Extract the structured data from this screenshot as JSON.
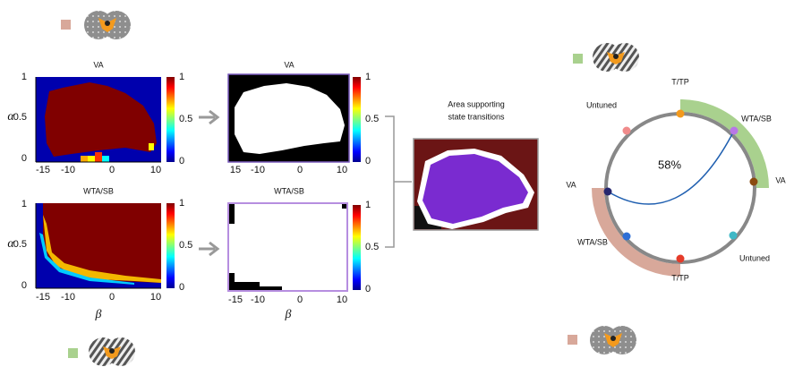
{
  "heatmaps": [
    {
      "title": "VA",
      "y_label": "α",
      "y_ticks": [
        1,
        0.5,
        0
      ],
      "x_ticks": [
        -15,
        -10,
        0,
        10
      ],
      "colorbar_ticks": [
        1,
        0.5,
        0
      ]
    },
    {
      "title": "VA",
      "x_ticks": [
        15,
        -10,
        0,
        10
      ],
      "colorbar_ticks": [
        1,
        0.5,
        0
      ]
    },
    {
      "title": "WTA/SB",
      "y_label": "α",
      "y_ticks": [
        1,
        0.5,
        0
      ],
      "x_ticks": [
        -15,
        -10,
        0,
        10
      ],
      "x_label": "β",
      "colorbar_ticks": [
        1,
        0.5,
        0
      ]
    },
    {
      "title": "WTA/SB",
      "x_ticks": [
        -15,
        -10,
        0,
        10
      ],
      "x_label": "β",
      "colorbar_ticks": [
        1,
        0.5,
        0
      ]
    }
  ],
  "transition_area": {
    "lines": [
      "Area supporting",
      "state transitions"
    ]
  },
  "state_circle": {
    "labels": [
      "T/TP",
      "WTA/SB",
      "VA",
      "Untuned",
      "T/TP",
      "WTA/SB",
      "VA",
      "Untuned"
    ],
    "percentage": "58%"
  }
}
